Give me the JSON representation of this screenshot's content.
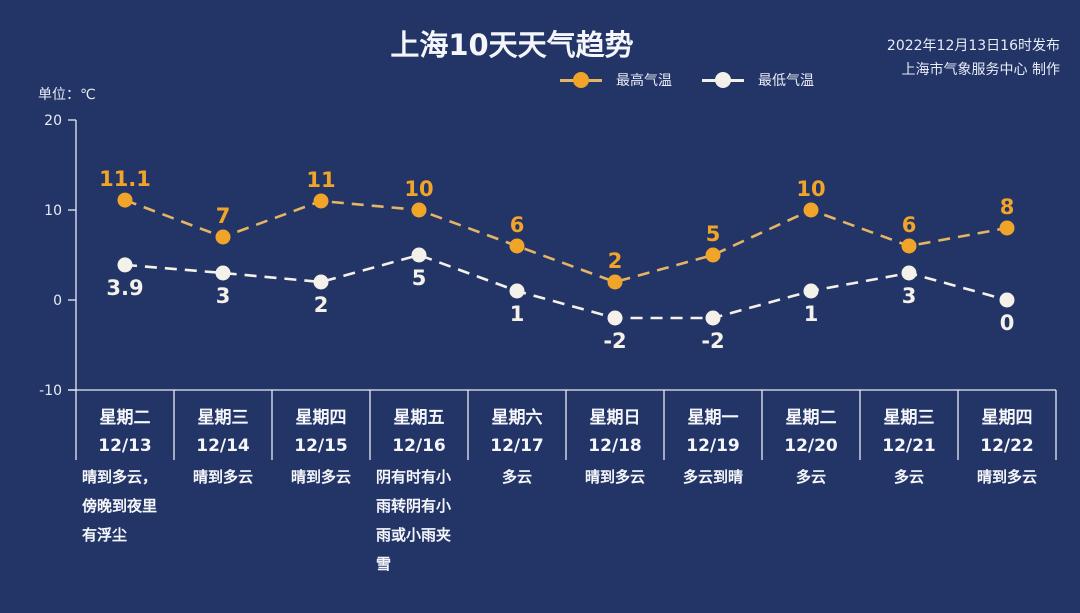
{
  "header": {
    "title": "上海10天天气趋势",
    "issued": "2022年12月13日16时发布",
    "producer": "上海市气象服务中心 制作"
  },
  "legend": {
    "high_label": "最高气温",
    "low_label": "最低气温"
  },
  "axis": {
    "unit": "单位：℃",
    "ticks": [
      "20",
      "10",
      "0",
      "-10"
    ]
  },
  "colors": {
    "background": "#233466",
    "high": "#f0a42a",
    "high_line": "#e5b464",
    "low": "#f4f0ea",
    "axis": "#e8ecf6"
  },
  "days": [
    {
      "weekday": "星期二",
      "date": "12/13",
      "desc": "晴到多云，傍晚到夜里有浮尘"
    },
    {
      "weekday": "星期三",
      "date": "12/14",
      "desc": "晴到多云"
    },
    {
      "weekday": "星期四",
      "date": "12/15",
      "desc": "晴到多云"
    },
    {
      "weekday": "星期五",
      "date": "12/16",
      "desc": "阴有时有小雨转阴有小雨或小雨夹雪"
    },
    {
      "weekday": "星期六",
      "date": "12/17",
      "desc": "多云"
    },
    {
      "weekday": "星期日",
      "date": "12/18",
      "desc": "晴到多云"
    },
    {
      "weekday": "星期一",
      "date": "12/19",
      "desc": "多云到晴"
    },
    {
      "weekday": "星期二",
      "date": "12/20",
      "desc": "多云"
    },
    {
      "weekday": "星期三",
      "date": "12/21",
      "desc": "多云"
    },
    {
      "weekday": "星期四",
      "date": "12/22",
      "desc": "晴到多云"
    }
  ],
  "chart_data": {
    "type": "line",
    "title": "上海10天天气趋势",
    "subtitle": "2022年12月13日16时发布 / 上海市气象服务中心 制作",
    "xlabel": "",
    "ylabel": "单位：℃",
    "ylim": [
      -10,
      20
    ],
    "yticks": [
      20,
      10,
      0,
      -10
    ],
    "grid": false,
    "legend_position": "top-right",
    "categories": [
      "星期二 12/13",
      "星期三 12/14",
      "星期四 12/15",
      "星期五 12/16",
      "星期六 12/17",
      "星期日 12/18",
      "星期一 12/19",
      "星期二 12/20",
      "星期三 12/21",
      "星期四 12/22"
    ],
    "series": [
      {
        "name": "最高气温",
        "values": [
          11.1,
          7,
          11,
          10,
          6,
          2,
          5,
          10,
          6,
          8
        ],
        "labels": [
          "11.1",
          "7",
          "11",
          "10",
          "6",
          "2",
          "5",
          "10",
          "6",
          "8"
        ]
      },
      {
        "name": "最低气温",
        "values": [
          3.9,
          3,
          2,
          5,
          1,
          -2,
          -2,
          1,
          3,
          0
        ],
        "labels": [
          "3.9",
          "3",
          "2",
          "5",
          "1",
          "-2",
          "-2",
          "1",
          "3",
          "0"
        ]
      }
    ]
  }
}
